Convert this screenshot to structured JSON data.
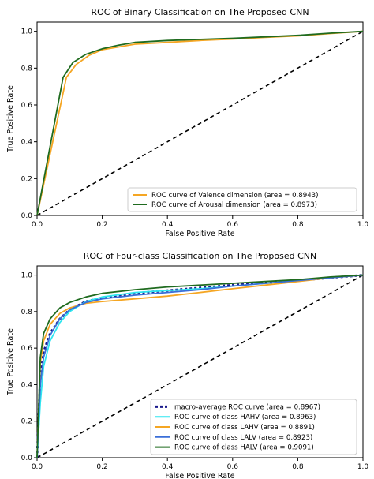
{
  "chart_data": [
    {
      "type": "line",
      "title": "ROC of Binary Classification on The Proposed CNN",
      "xlabel": "False Positive Rate",
      "ylabel": "True Positive Rate",
      "xlim": [
        0,
        1
      ],
      "ylim": [
        0,
        1.05
      ],
      "xticks": [
        "0.0",
        "0.2",
        "0.4",
        "0.6",
        "0.8",
        "1.0"
      ],
      "yticks": [
        "0.0",
        "0.2",
        "0.4",
        "0.6",
        "0.8",
        "1.0"
      ],
      "grid": false,
      "legend_position": "lower-right",
      "chance_line": true,
      "series": [
        {
          "name": "ROC curve of Valence dimension (area = 0.8943)",
          "color": "#f5a623",
          "dash": "solid",
          "x": [
            0,
            0.09,
            0.12,
            0.16,
            0.2,
            0.25,
            0.3,
            0.4,
            0.5,
            0.6,
            0.7,
            0.8,
            0.9,
            1.0
          ],
          "y": [
            0,
            0.75,
            0.82,
            0.87,
            0.9,
            0.915,
            0.93,
            0.94,
            0.95,
            0.958,
            0.967,
            0.975,
            0.988,
            1.0
          ]
        },
        {
          "name": "ROC curve of Arousal dimension (area = 0.8973)",
          "color": "#1f6b1f",
          "dash": "solid",
          "x": [
            0,
            0.08,
            0.11,
            0.15,
            0.2,
            0.25,
            0.3,
            0.4,
            0.5,
            0.6,
            0.7,
            0.8,
            0.9,
            1.0
          ],
          "y": [
            0,
            0.75,
            0.83,
            0.875,
            0.905,
            0.925,
            0.94,
            0.95,
            0.956,
            0.962,
            0.97,
            0.978,
            0.99,
            1.0
          ]
        }
      ]
    },
    {
      "type": "line",
      "title": "ROC of Four-class Classification on The Proposed CNN",
      "xlabel": "False Positive Rate",
      "ylabel": "True Positive Rate",
      "xlim": [
        0,
        1
      ],
      "ylim": [
        0,
        1.05
      ],
      "xticks": [
        "0.0",
        "0.2",
        "0.4",
        "0.6",
        "0.8",
        "1.0"
      ],
      "yticks": [
        "0.0",
        "0.2",
        "0.4",
        "0.6",
        "0.8",
        "1.0"
      ],
      "grid": false,
      "legend_position": "lower-right",
      "chance_line": true,
      "series": [
        {
          "name": "macro-average ROC curve (area = 0.8967)",
          "color": "#1a1a8c",
          "dash": "dotted",
          "x": [
            0,
            0.01,
            0.02,
            0.04,
            0.07,
            0.1,
            0.15,
            0.2,
            0.3,
            0.4,
            0.5,
            0.6,
            0.7,
            0.8,
            0.9,
            1.0
          ],
          "y": [
            0,
            0.45,
            0.58,
            0.68,
            0.76,
            0.81,
            0.855,
            0.875,
            0.9,
            0.915,
            0.93,
            0.945,
            0.958,
            0.97,
            0.985,
            1.0
          ]
        },
        {
          "name": "ROC curve of  class HAHV (area = 0.8963)",
          "color": "#2ee6f0",
          "dash": "solid",
          "x": [
            0,
            0.01,
            0.02,
            0.04,
            0.07,
            0.1,
            0.15,
            0.2,
            0.3,
            0.4,
            0.5,
            0.6,
            0.7,
            0.8,
            0.9,
            1.0
          ],
          "y": [
            0,
            0.3,
            0.5,
            0.64,
            0.74,
            0.8,
            0.855,
            0.88,
            0.905,
            0.915,
            0.925,
            0.94,
            0.955,
            0.97,
            0.985,
            1.0
          ]
        },
        {
          "name": "ROC curve of  class LAHV (area = 0.8891)",
          "color": "#f5a623",
          "dash": "solid",
          "x": [
            0,
            0.01,
            0.02,
            0.04,
            0.07,
            0.1,
            0.15,
            0.2,
            0.3,
            0.4,
            0.5,
            0.6,
            0.7,
            0.8,
            0.9,
            1.0
          ],
          "y": [
            0,
            0.52,
            0.64,
            0.73,
            0.79,
            0.82,
            0.845,
            0.855,
            0.87,
            0.885,
            0.905,
            0.925,
            0.945,
            0.965,
            0.985,
            1.0
          ]
        },
        {
          "name": "ROC curve of  class LALV (area = 0.8923)",
          "color": "#3a6fd8",
          "dash": "solid",
          "x": [
            0,
            0.01,
            0.02,
            0.04,
            0.07,
            0.1,
            0.15,
            0.2,
            0.3,
            0.4,
            0.5,
            0.6,
            0.7,
            0.8,
            0.9,
            1.0
          ],
          "y": [
            0,
            0.4,
            0.55,
            0.67,
            0.76,
            0.81,
            0.85,
            0.87,
            0.89,
            0.905,
            0.92,
            0.94,
            0.955,
            0.97,
            0.985,
            1.0
          ]
        },
        {
          "name": "ROC curve of  class HALV (area = 0.9091)",
          "color": "#1f6b1f",
          "dash": "solid",
          "x": [
            0,
            0.01,
            0.02,
            0.04,
            0.07,
            0.1,
            0.15,
            0.2,
            0.3,
            0.4,
            0.5,
            0.6,
            0.7,
            0.8,
            0.9,
            1.0
          ],
          "y": [
            0,
            0.55,
            0.68,
            0.76,
            0.82,
            0.85,
            0.88,
            0.9,
            0.92,
            0.935,
            0.945,
            0.955,
            0.965,
            0.975,
            0.99,
            1.0
          ]
        }
      ]
    }
  ]
}
